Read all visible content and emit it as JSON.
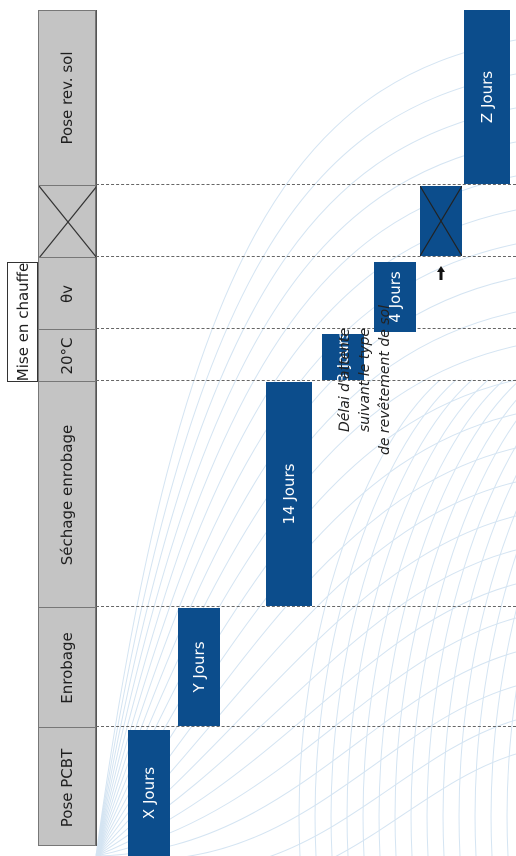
{
  "header": {
    "stages": [
      {
        "id": "pose-pcbt",
        "label": "Pose PCBT"
      },
      {
        "id": "enrobage",
        "label": "Enrobage"
      },
      {
        "id": "sechage-enrobage",
        "label": "Séchage enrobage"
      },
      {
        "id": "temp-20c",
        "label": "20°C"
      },
      {
        "id": "theta-v",
        "label": "θv"
      },
      {
        "id": "pose-rev-sol",
        "label": "Pose rev. sol"
      }
    ],
    "heating_group_label": "Mise en chauffe"
  },
  "bars": [
    {
      "id": "x-jours",
      "label": "X Jours"
    },
    {
      "id": "y-jours",
      "label": "Y Jours"
    },
    {
      "id": "14-jours",
      "label": "14 Jours"
    },
    {
      "id": "3-jours",
      "label": "3 Jours"
    },
    {
      "id": "4-jours",
      "label": "4 Jours"
    },
    {
      "id": "z-jours",
      "label": "Z Jours"
    }
  ],
  "note": {
    "lines": [
      "Délai d'attente",
      "suivant le type",
      "de revêtement de sol"
    ]
  },
  "colors": {
    "bar": "#0c4d8c",
    "header_bg": "#c4c4c4",
    "background_lines": "#d4e4f2"
  },
  "icons": {
    "wait_cross": "x-cross-icon",
    "arrow": "arrow-up-icon"
  }
}
